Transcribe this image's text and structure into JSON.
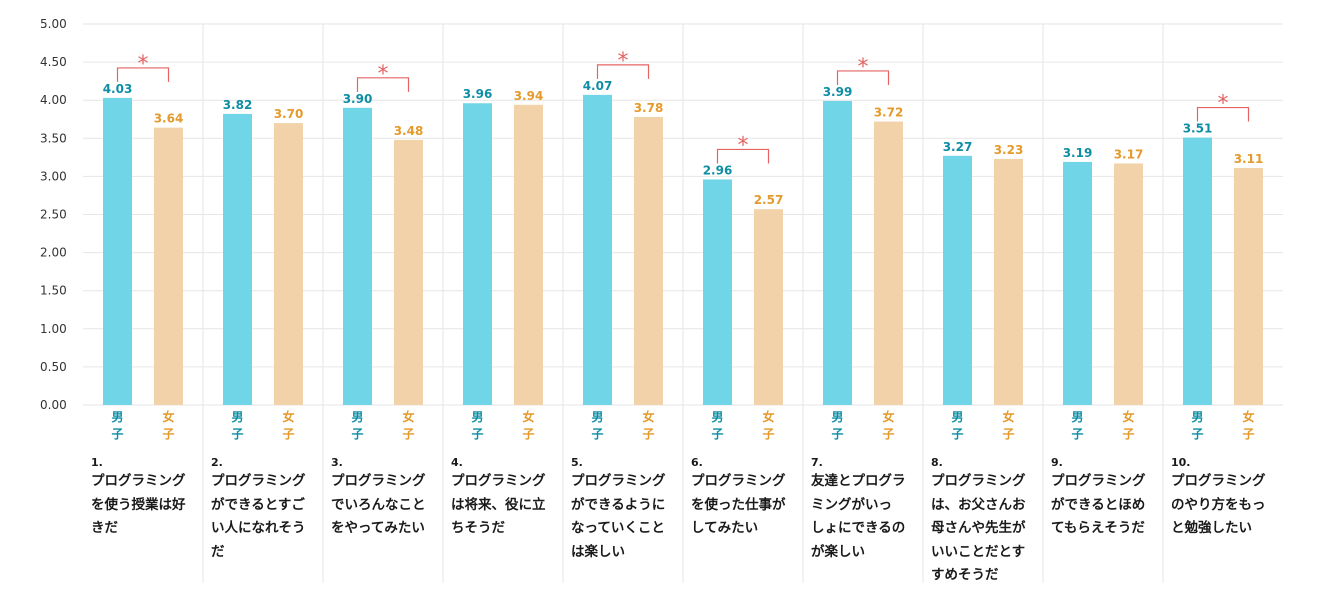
{
  "colors": {
    "male": "#70d6e7",
    "female": "#f2d3a9",
    "male_label": "#0e8ea5",
    "female_label": "#e49a2c",
    "significance": "#e56363",
    "grid": "#e6e6e6"
  },
  "chart_data": {
    "type": "bar",
    "ylim": [
      0,
      5
    ],
    "y_ticks": [
      "0.00",
      "0.50",
      "1.00",
      "1.50",
      "2.00",
      "2.50",
      "3.00",
      "3.50",
      "4.00",
      "4.50",
      "5.00"
    ],
    "series": [
      {
        "name": "男子",
        "values": [
          4.03,
          3.82,
          3.9,
          3.96,
          4.07,
          2.96,
          3.99,
          3.27,
          3.19,
          3.51
        ]
      },
      {
        "name": "女子",
        "values": [
          3.64,
          3.7,
          3.48,
          3.94,
          3.78,
          2.57,
          3.72,
          3.23,
          3.17,
          3.11
        ]
      }
    ],
    "value_labels": {
      "male": [
        "4.03",
        "3.82",
        "3.90",
        "3.96",
        "4.07",
        "2.96",
        "3.99",
        "3.27",
        "3.19",
        "3.51"
      ],
      "female": [
        "3.64",
        "3.70",
        "3.48",
        "3.94",
        "3.78",
        "2.57",
        "3.72",
        "3.23",
        "3.17",
        "3.11"
      ]
    },
    "gender_labels": {
      "male": [
        "男",
        "子"
      ],
      "female": [
        "女",
        "子"
      ]
    },
    "significant": [
      true,
      false,
      true,
      false,
      true,
      true,
      true,
      false,
      false,
      true
    ],
    "significance_mark": "*",
    "categories": [
      {
        "num": "1.",
        "text": "プログラミング\nを使う授業は好\nきだ"
      },
      {
        "num": "2.",
        "text": "プログラミング\nができるとすご\nい人になれそう\nだ"
      },
      {
        "num": "3.",
        "text": "プログラミング\nでいろんなこと\nをやってみたい"
      },
      {
        "num": "4.",
        "text": "プログラミング\nは将来、役に立\nちそうだ"
      },
      {
        "num": "5.",
        "text": "プログラミング\nができるように\nなっていくこと\nは楽しい"
      },
      {
        "num": "6.",
        "text": "プログラミング\nを使った仕事が\nしてみたい"
      },
      {
        "num": "7.",
        "text": "友達とプログラ\nミングがいっ\nしょにできるの\nが楽しい"
      },
      {
        "num": "8.",
        "text": "プログラミング\nは、お父さんお\n母さんや先生が\nいいことだとす\nすめそうだ"
      },
      {
        "num": "9.",
        "text": "プログラミング\nができるとほめ\nてもらえそうだ"
      },
      {
        "num": "10.",
        "text": "プログラミング\nのやり方をもっ\nと勉強したい"
      }
    ]
  }
}
